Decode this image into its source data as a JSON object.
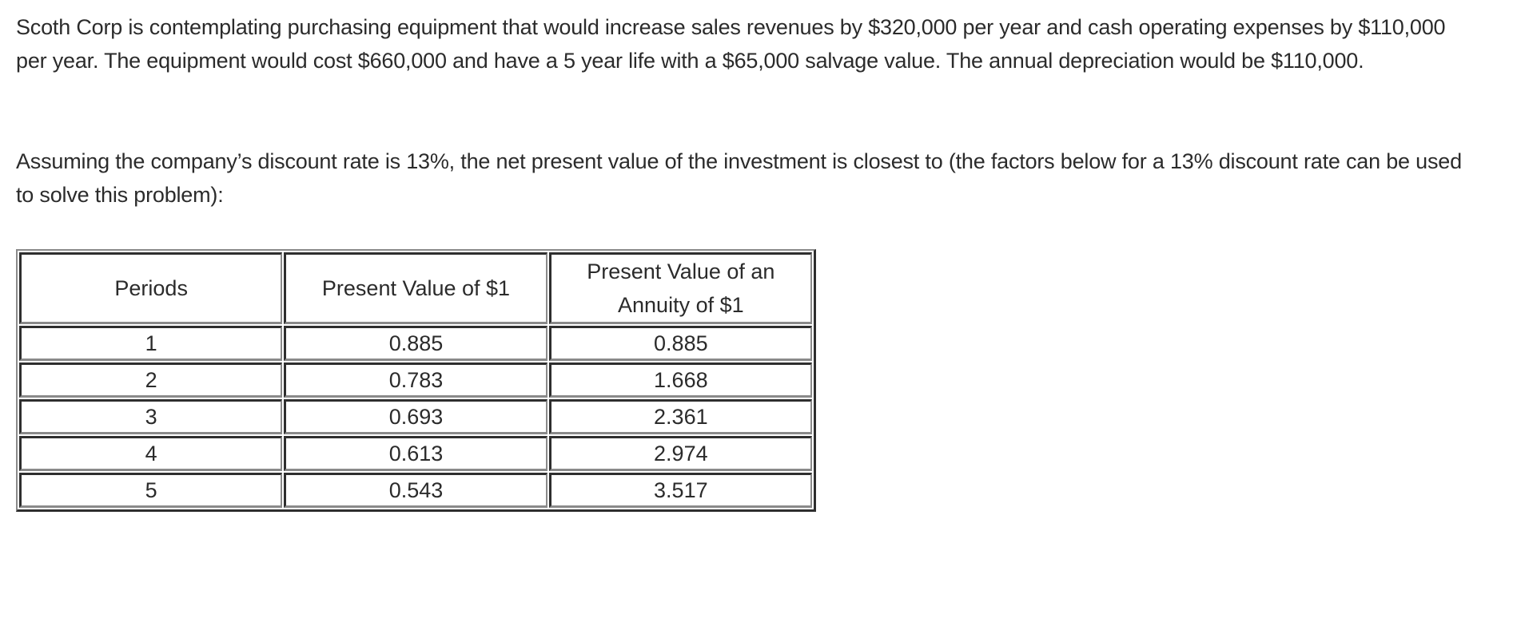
{
  "question": {
    "paragraph1": "Scoth Corp is contemplating purchasing equipment that would increase sales revenues by $320,000 per year and cash operating expenses by $110,000 per year. The equipment would cost $660,000 and have a 5 year life with a $65,000 salvage value. The annual depreciation would be $110,000.",
    "paragraph2": "Assuming the company’s discount rate is 13%, the net present value of the investment is closest to (the factors below for a 13% discount rate can be used to solve this problem):"
  },
  "table": {
    "headers": [
      "Periods",
      "Present Value of $1",
      "Present Value of an Annuity of $1"
    ],
    "rows": [
      {
        "period": "1",
        "pv": "0.885",
        "pva": "0.885"
      },
      {
        "period": "2",
        "pv": "0.783",
        "pva": "1.668"
      },
      {
        "period": "3",
        "pv": "0.693",
        "pva": "2.361"
      },
      {
        "period": "4",
        "pv": "0.613",
        "pva": "2.974"
      },
      {
        "period": "5",
        "pv": "0.543",
        "pva": "3.517"
      }
    ]
  },
  "colors": {
    "text": "#2b2b2b",
    "border_dark": "#2e2e2e",
    "border_light": "#8a8a8a",
    "background": "#ffffff"
  }
}
